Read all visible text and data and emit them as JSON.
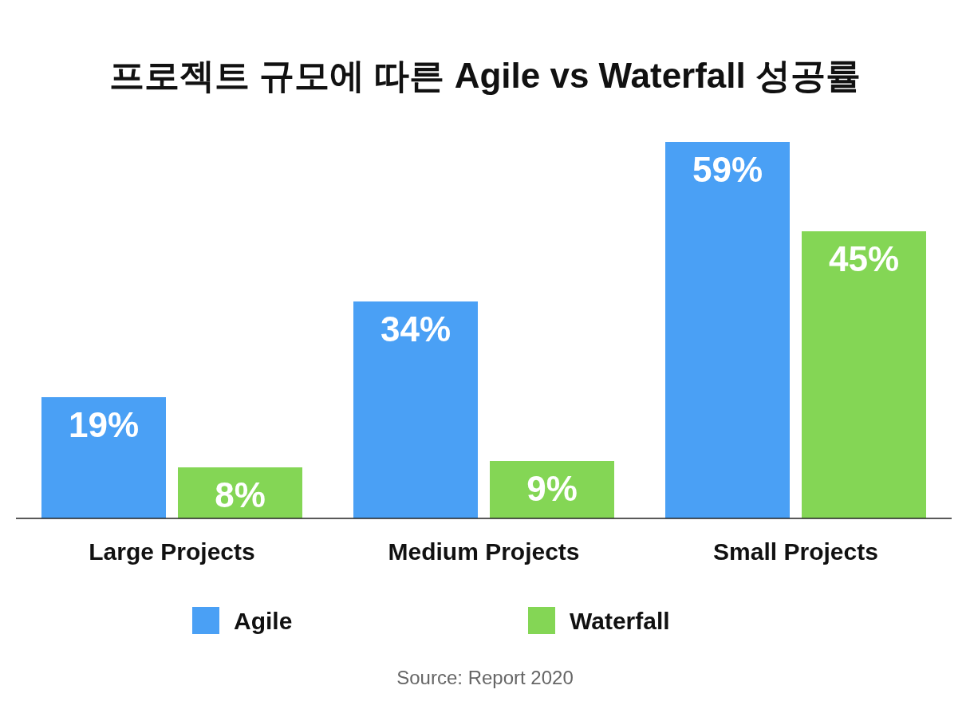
{
  "chart_data": {
    "type": "bar",
    "title": "프로젝트 규모에 따른 Agile vs Waterfall 성공률",
    "categories": [
      "Large Projects",
      "Medium Projects",
      "Small Projects"
    ],
    "series": [
      {
        "name": "Agile",
        "color": "#4aa0f5",
        "values": [
          19,
          34,
          59
        ],
        "value_labels": [
          "19%",
          "34%",
          "59%"
        ]
      },
      {
        "name": "Waterfall",
        "color": "#84d655",
        "values": [
          8,
          9,
          45
        ],
        "value_labels": [
          "8%",
          "9%",
          "45%"
        ]
      }
    ],
    "legend": "bottom",
    "grid": false,
    "annotations": [
      "Source: Report 2020"
    ]
  }
}
